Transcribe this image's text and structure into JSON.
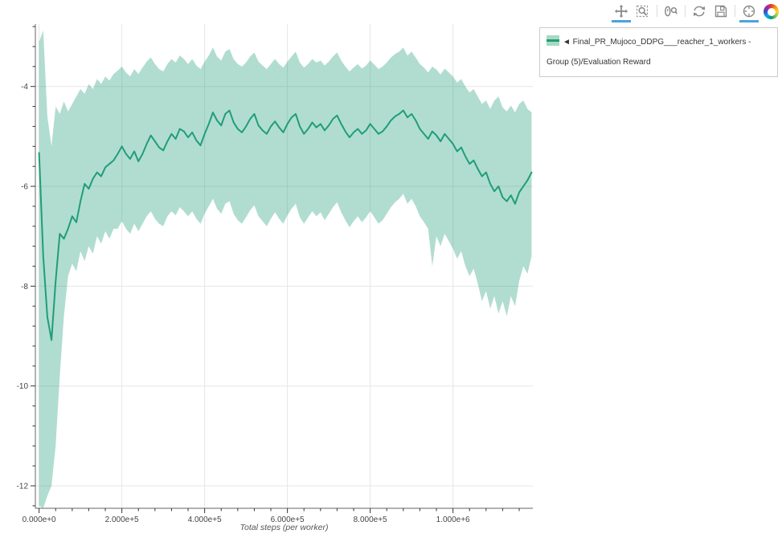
{
  "toolbar": {
    "icon_color": "#8a8a8a",
    "active_underline_color": "#4aa3df",
    "tools": [
      {
        "name": "pan",
        "active": true
      },
      {
        "name": "box-zoom",
        "active": false
      },
      {
        "name": "wheel-zoom",
        "active": false
      },
      {
        "name": "reset",
        "active": false
      },
      {
        "name": "save",
        "active": false
      },
      {
        "name": "hover",
        "active": true
      }
    ],
    "logo": "bokeh"
  },
  "legend": {
    "label": "◄ Final_PR_Mujoco_DDPG___reacher_1_workers - Group (5)/Evaluation Reward",
    "swatch_band_color": "#a9d8c5",
    "swatch_line_color": "#1f9e77"
  },
  "chart_data": {
    "type": "line",
    "title": "",
    "xlabel": "Total steps (per worker)",
    "ylabel": "",
    "grid": true,
    "grid_color": "#e6e6e6",
    "background": "#ffffff",
    "xlim": [
      -9000,
      1193000
    ],
    "ylim": [
      -12.45,
      -2.75
    ],
    "x_tick_values": [
      0,
      200000,
      400000,
      600000,
      800000,
      1000000
    ],
    "x_tick_labels": [
      "0.000e+0",
      "2.000e+5",
      "4.000e+5",
      "6.000e+5",
      "8.000e+5",
      "1.000e+6"
    ],
    "x_minor_step": 40000,
    "x_tick_step": 200000,
    "y_tick_values": [
      -4,
      -6,
      -8,
      -10,
      -12
    ],
    "y_tick_labels": [
      "-4",
      "-6",
      "-8",
      "-10",
      "-12"
    ],
    "y_minor_step": 0.4,
    "legend_position": "right-outside",
    "series": [
      {
        "name": "Final_PR_Mujoco_DDPG___reacher_1_workers - Group (5)/Evaluation Reward",
        "color": "#1f9e77",
        "band_color": "rgba(31,158,119,0.35)",
        "x": [
          0,
          10000,
          20000,
          30000,
          40000,
          50000,
          60000,
          70000,
          80000,
          90000,
          100000,
          110000,
          120000,
          130000,
          140000,
          150000,
          160000,
          170000,
          180000,
          190000,
          200000,
          210000,
          220000,
          230000,
          240000,
          250000,
          260000,
          270000,
          280000,
          290000,
          300000,
          310000,
          320000,
          330000,
          340000,
          350000,
          360000,
          370000,
          380000,
          390000,
          400000,
          410000,
          420000,
          430000,
          440000,
          450000,
          460000,
          470000,
          480000,
          490000,
          500000,
          510000,
          520000,
          530000,
          540000,
          550000,
          560000,
          570000,
          580000,
          590000,
          600000,
          610000,
          620000,
          630000,
          640000,
          650000,
          660000,
          670000,
          680000,
          690000,
          700000,
          710000,
          720000,
          730000,
          740000,
          750000,
          760000,
          770000,
          780000,
          790000,
          800000,
          810000,
          820000,
          830000,
          840000,
          850000,
          860000,
          870000,
          880000,
          890000,
          900000,
          910000,
          920000,
          930000,
          940000,
          950000,
          960000,
          970000,
          980000,
          990000,
          1000000,
          1010000,
          1020000,
          1030000,
          1040000,
          1050000,
          1060000,
          1070000,
          1080000,
          1090000,
          1100000,
          1110000,
          1120000,
          1130000,
          1140000,
          1150000,
          1160000,
          1170000,
          1180000,
          1190000
        ],
        "mean": [
          -5.33,
          -7.4,
          -8.62,
          -9.08,
          -7.9,
          -6.95,
          -7.05,
          -6.85,
          -6.6,
          -6.72,
          -6.3,
          -5.95,
          -6.05,
          -5.85,
          -5.72,
          -5.8,
          -5.62,
          -5.55,
          -5.48,
          -5.35,
          -5.2,
          -5.35,
          -5.45,
          -5.3,
          -5.5,
          -5.35,
          -5.15,
          -4.98,
          -5.1,
          -5.22,
          -5.28,
          -5.1,
          -4.95,
          -5.05,
          -4.85,
          -4.9,
          -5.02,
          -4.92,
          -5.08,
          -5.18,
          -4.95,
          -4.75,
          -4.52,
          -4.68,
          -4.78,
          -4.55,
          -4.48,
          -4.72,
          -4.85,
          -4.92,
          -4.8,
          -4.65,
          -4.55,
          -4.78,
          -4.88,
          -4.95,
          -4.8,
          -4.7,
          -4.82,
          -4.92,
          -4.75,
          -4.62,
          -4.55,
          -4.8,
          -4.95,
          -4.85,
          -4.72,
          -4.82,
          -4.75,
          -4.88,
          -4.78,
          -4.65,
          -4.58,
          -4.75,
          -4.9,
          -5.02,
          -4.92,
          -4.85,
          -4.95,
          -4.88,
          -4.75,
          -4.85,
          -4.95,
          -4.9,
          -4.8,
          -4.68,
          -4.6,
          -4.55,
          -4.48,
          -4.62,
          -4.55,
          -4.68,
          -4.85,
          -4.95,
          -5.05,
          -4.9,
          -4.98,
          -5.1,
          -4.95,
          -5.05,
          -5.15,
          -5.3,
          -5.22,
          -5.4,
          -5.55,
          -5.48,
          -5.65,
          -5.8,
          -5.72,
          -5.95,
          -6.1,
          -6.0,
          -6.22,
          -6.3,
          -6.18,
          -6.35,
          -6.12,
          -6.0,
          -5.88,
          -5.72
        ],
        "upper": [
          -3.1,
          -2.88,
          -4.6,
          -5.2,
          -4.4,
          -4.55,
          -4.3,
          -4.5,
          -4.35,
          -4.2,
          -4.05,
          -4.15,
          -3.95,
          -4.05,
          -3.85,
          -3.95,
          -3.8,
          -3.88,
          -3.75,
          -3.68,
          -3.6,
          -3.72,
          -3.8,
          -3.65,
          -3.75,
          -3.62,
          -3.5,
          -3.42,
          -3.55,
          -3.65,
          -3.7,
          -3.55,
          -3.45,
          -3.52,
          -3.38,
          -3.45,
          -3.55,
          -3.45,
          -3.58,
          -3.65,
          -3.5,
          -3.38,
          -3.22,
          -3.4,
          -3.48,
          -3.3,
          -3.25,
          -3.45,
          -3.55,
          -3.6,
          -3.52,
          -3.4,
          -3.32,
          -3.5,
          -3.58,
          -3.65,
          -3.55,
          -3.45,
          -3.55,
          -3.62,
          -3.5,
          -3.4,
          -3.3,
          -3.52,
          -3.62,
          -3.55,
          -3.45,
          -3.52,
          -3.48,
          -3.58,
          -3.5,
          -3.4,
          -3.32,
          -3.48,
          -3.6,
          -3.7,
          -3.62,
          -3.55,
          -3.64,
          -3.58,
          -3.48,
          -3.56,
          -3.65,
          -3.6,
          -3.52,
          -3.42,
          -3.35,
          -3.3,
          -3.22,
          -3.38,
          -3.3,
          -3.42,
          -3.55,
          -3.62,
          -3.72,
          -3.6,
          -3.66,
          -3.76,
          -3.64,
          -3.72,
          -3.8,
          -3.92,
          -3.85,
          -4.0,
          -4.12,
          -4.05,
          -4.2,
          -4.35,
          -4.28,
          -4.45,
          -4.28,
          -4.2,
          -4.42,
          -4.5,
          -4.38,
          -4.52,
          -4.35,
          -4.28,
          -4.45,
          -4.52
        ],
        "lower": [
          -12.4,
          -12.45,
          -12.2,
          -12.0,
          -11.2,
          -9.8,
          -8.6,
          -7.8,
          -7.55,
          -7.7,
          -7.3,
          -7.5,
          -7.2,
          -7.35,
          -7.0,
          -7.15,
          -6.9,
          -7.05,
          -6.85,
          -6.85,
          -6.7,
          -6.85,
          -6.95,
          -6.75,
          -6.9,
          -6.75,
          -6.6,
          -6.5,
          -6.65,
          -6.75,
          -6.8,
          -6.6,
          -6.5,
          -6.58,
          -6.42,
          -6.5,
          -6.6,
          -6.5,
          -6.65,
          -6.75,
          -6.55,
          -6.4,
          -6.25,
          -6.45,
          -6.55,
          -6.35,
          -6.3,
          -6.55,
          -6.68,
          -6.75,
          -6.62,
          -6.48,
          -6.38,
          -6.6,
          -6.7,
          -6.8,
          -6.65,
          -6.52,
          -6.65,
          -6.75,
          -6.58,
          -6.45,
          -6.35,
          -6.62,
          -6.75,
          -6.62,
          -6.5,
          -6.6,
          -6.52,
          -6.68,
          -6.55,
          -6.42,
          -6.32,
          -6.52,
          -6.68,
          -6.82,
          -6.7,
          -6.6,
          -6.72,
          -6.62,
          -6.5,
          -6.62,
          -6.75,
          -6.68,
          -6.55,
          -6.42,
          -6.32,
          -6.25,
          -6.15,
          -6.35,
          -6.25,
          -6.4,
          -6.6,
          -6.72,
          -6.85,
          -7.6,
          -7.0,
          -7.2,
          -6.95,
          -7.1,
          -7.25,
          -7.45,
          -7.3,
          -7.6,
          -7.8,
          -7.65,
          -7.95,
          -8.3,
          -8.1,
          -8.45,
          -8.2,
          -8.55,
          -8.3,
          -8.6,
          -8.2,
          -8.4,
          -7.9,
          -7.6,
          -7.75,
          -7.4
        ]
      }
    ]
  }
}
